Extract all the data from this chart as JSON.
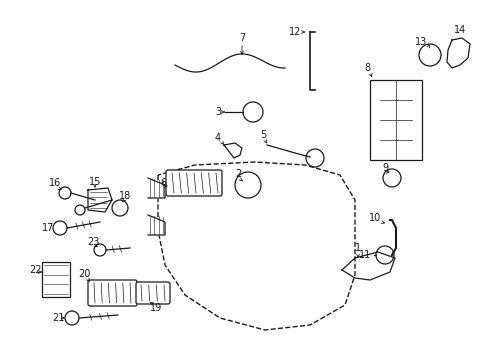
{
  "bg": "#ffffff",
  "lc": "#1a1a1a",
  "fig_w": 4.89,
  "fig_h": 3.6,
  "dpi": 100,
  "xlim": [
    0,
    489
  ],
  "ylim": [
    0,
    360
  ]
}
